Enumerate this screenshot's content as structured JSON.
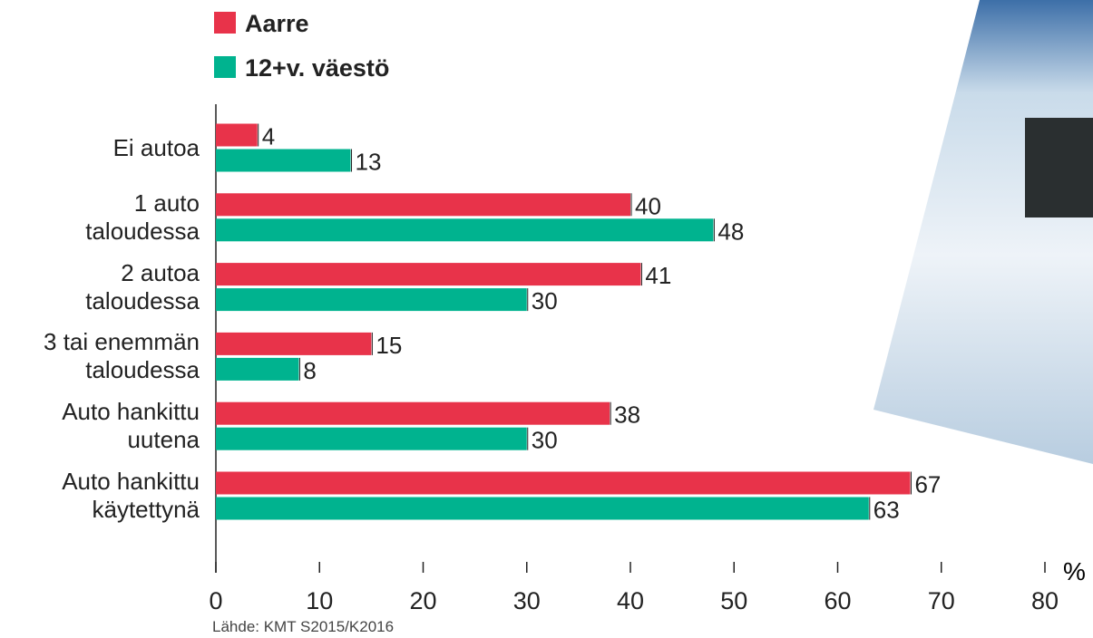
{
  "chart_data": {
    "type": "bar",
    "orientation": "horizontal",
    "categories": [
      "Ei autoa",
      "1 auto\ntaloudessa",
      "2 autoa\ntaloudessa",
      "3 tai enemmän\ntaloudessa",
      "Auto hankittu\nuutena",
      "Auto hankittu\nkäytettynä"
    ],
    "series": [
      {
        "name": "Aarre",
        "color": "#e8334a",
        "values": [
          4,
          40,
          41,
          15,
          38,
          67
        ]
      },
      {
        "name": "12+v. väestö",
        "color": "#00b38f",
        "values": [
          13,
          48,
          30,
          8,
          30,
          63
        ]
      }
    ],
    "xlim": [
      0,
      80
    ],
    "xticks": [
      0,
      10,
      20,
      30,
      40,
      50,
      60,
      70,
      80
    ],
    "x_label": "%",
    "source": "Lähde: KMT S2015/K2016"
  }
}
